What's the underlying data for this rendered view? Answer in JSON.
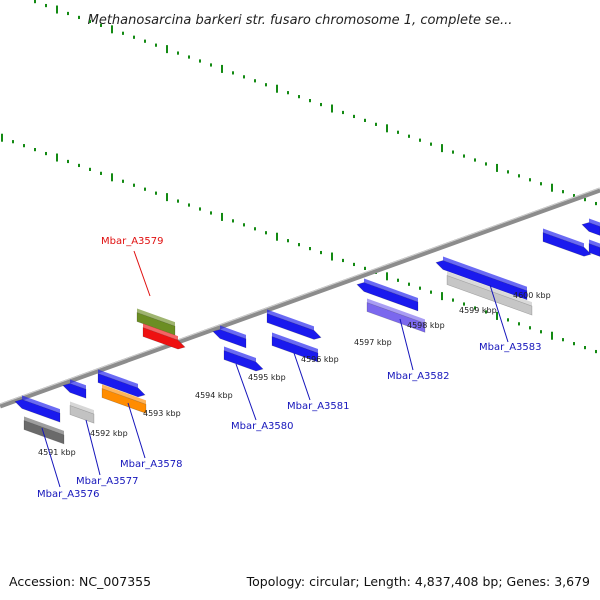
{
  "title": "Methanosarcina barkeri str. fusaro chromosome 1, complete se...",
  "footer": {
    "accession": "Accession: NC_007355",
    "stats": "Topology: circular; Length: 4,837,408 bp; Genes: 3,679"
  },
  "colors": {
    "backbone": "#8c8c8c",
    "tick": "#138a13",
    "gene_default": "#1a1aee",
    "label_default": "#1515bb",
    "label_highlight": "#e01010"
  },
  "kbp_labels": [
    "4591 kbp",
    "4592 kbp",
    "4593 kbp",
    "4594 kbp",
    "4595 kbp",
    "4596 kbp",
    "4597 kbp",
    "4598 kbp",
    "4599 kbp",
    "4600 kbp"
  ],
  "gene_labels": [
    {
      "text": "Mbar_A3576",
      "highlight": false
    },
    {
      "text": "Mbar_A3577",
      "highlight": false
    },
    {
      "text": "Mbar_A3578",
      "highlight": false
    },
    {
      "text": "Mbar_A3579",
      "highlight": true
    },
    {
      "text": "Mbar_A3580",
      "highlight": false
    },
    {
      "text": "Mbar_A3581",
      "highlight": false
    },
    {
      "text": "Mbar_A3582",
      "highlight": false
    },
    {
      "text": "Mbar_A3583",
      "highlight": false
    }
  ]
}
